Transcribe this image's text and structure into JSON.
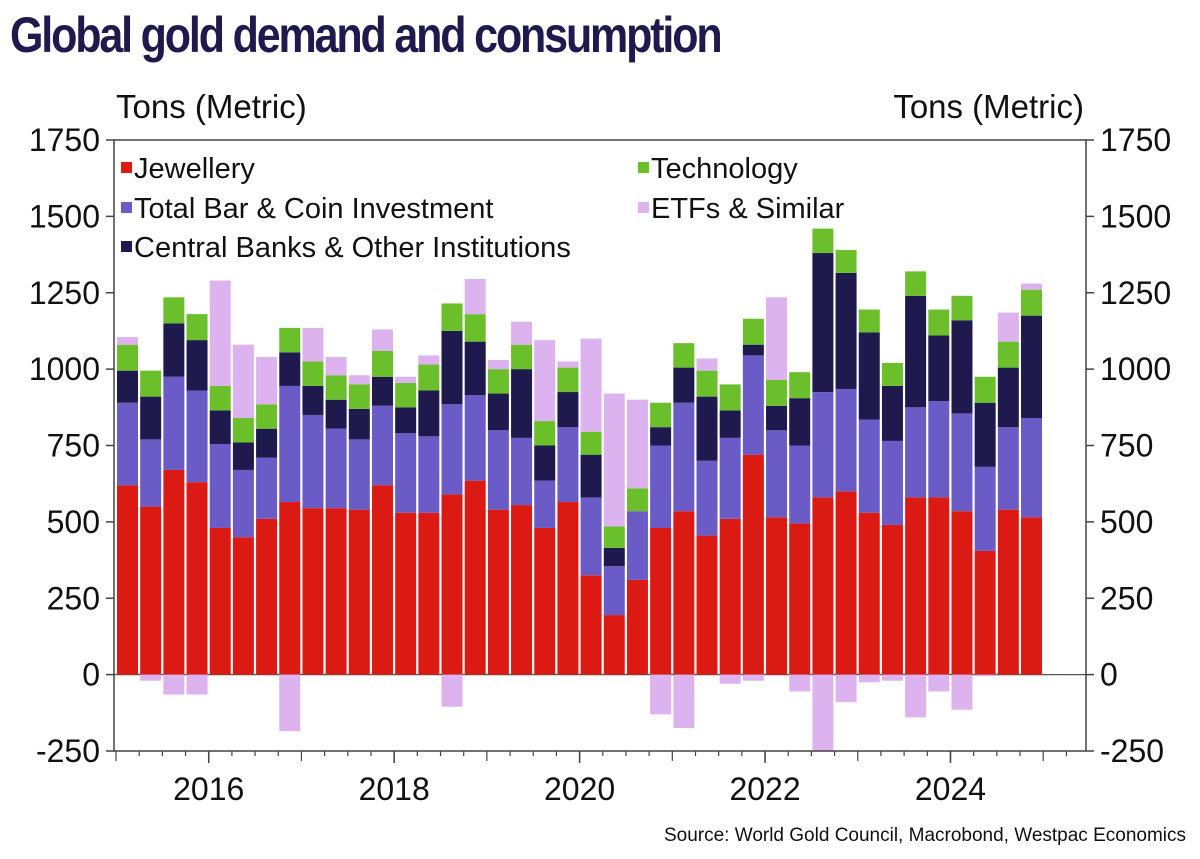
{
  "title": "Global gold demand and consumption",
  "units": {
    "left": "Tons (Metric)",
    "right": "Tons (Metric)"
  },
  "source": "Source: World Gold Council, Macrobond, Westpac Economics",
  "colors": {
    "Jewellery": "#dc1a14",
    "Technology": "#6bbf2a",
    "Total Bar & Coin Investment": "#6a5bc6",
    "ETFs & Similar": "#dcb3ef",
    "Central Banks & Other Institutions": "#1e1a4d"
  },
  "chart_data": {
    "type": "bar",
    "stacked": true,
    "x_axis": {
      "tick_labels": [
        "2016",
        "2018",
        "2020",
        "2022",
        "2024"
      ]
    },
    "y_axis": {
      "ylim": [
        -250,
        1750
      ],
      "ticks": [
        -250,
        0,
        250,
        500,
        750,
        1000,
        1250,
        1500,
        1750
      ],
      "left_label": "Tons (Metric)",
      "right_label": "Tons (Metric)"
    },
    "legend": [
      {
        "name": "Jewellery",
        "position": "top-left"
      },
      {
        "name": "Technology",
        "position": "top-right"
      },
      {
        "name": "Total Bar & Coin Investment",
        "position": "top-left"
      },
      {
        "name": "ETFs & Similar",
        "position": "top-right"
      },
      {
        "name": "Central Banks & Other Institutions",
        "position": "top-left"
      }
    ],
    "categories": [
      "2015 Q1",
      "2015 Q2",
      "2015 Q3",
      "2015 Q4",
      "2016 Q1",
      "2016 Q2",
      "2016 Q3",
      "2016 Q4",
      "2017 Q1",
      "2017 Q2",
      "2017 Q3",
      "2017 Q4",
      "2018 Q1",
      "2018 Q2",
      "2018 Q3",
      "2018 Q4",
      "2019 Q1",
      "2019 Q2",
      "2019 Q3",
      "2019 Q4",
      "2020 Q1",
      "2020 Q2",
      "2020 Q3",
      "2020 Q4",
      "2021 Q1",
      "2021 Q2",
      "2021 Q3",
      "2021 Q4",
      "2022 Q1",
      "2022 Q2",
      "2022 Q3",
      "2022 Q4",
      "2023 Q1",
      "2023 Q2",
      "2023 Q3",
      "2023 Q4",
      "2024 Q1",
      "2024 Q2",
      "2024 Q3",
      "2024 Q4",
      "2025 Q1"
    ],
    "series": [
      {
        "name": "Jewellery",
        "values": [
          620,
          550,
          670,
          630,
          480,
          450,
          510,
          565,
          545,
          545,
          540,
          620,
          530,
          530,
          590,
          635,
          540,
          555,
          480,
          565,
          325,
          195,
          310,
          480,
          535,
          455,
          510,
          720,
          515,
          495,
          580,
          600,
          530,
          490,
          580,
          580,
          535,
          405,
          540,
          515,
          0
        ]
      },
      {
        "name": "Total Bar & Coin Investment",
        "values": [
          270,
          220,
          305,
          300,
          275,
          220,
          200,
          380,
          305,
          260,
          230,
          260,
          260,
          250,
          295,
          280,
          260,
          220,
          155,
          245,
          255,
          160,
          225,
          270,
          355,
          245,
          265,
          325,
          285,
          255,
          345,
          335,
          305,
          275,
          295,
          315,
          320,
          275,
          270,
          325,
          0
        ]
      },
      {
        "name": "Central Banks & Other Institutions",
        "values": [
          105,
          140,
          175,
          165,
          110,
          90,
          95,
          110,
          95,
          95,
          100,
          95,
          85,
          150,
          240,
          175,
          120,
          225,
          115,
          115,
          140,
          60,
          0,
          60,
          115,
          210,
          90,
          35,
          80,
          155,
          455,
          380,
          285,
          180,
          365,
          215,
          305,
          210,
          195,
          335,
          0
        ]
      },
      {
        "name": "Technology",
        "values": [
          85,
          85,
          85,
          85,
          80,
          80,
          80,
          80,
          80,
          80,
          80,
          85,
          80,
          85,
          90,
          90,
          80,
          80,
          80,
          80,
          75,
          70,
          75,
          80,
          80,
          85,
          85,
          85,
          85,
          85,
          80,
          75,
          75,
          75,
          80,
          85,
          80,
          85,
          85,
          85,
          0
        ]
      },
      {
        "name": "ETFs & Similar",
        "values": [
          25,
          -20,
          -65,
          -65,
          345,
          240,
          155,
          -185,
          110,
          60,
          30,
          70,
          20,
          30,
          -105,
          115,
          30,
          75,
          265,
          20,
          305,
          435,
          290,
          -130,
          -175,
          40,
          -30,
          -20,
          270,
          -55,
          -250,
          -90,
          -25,
          -20,
          -140,
          -55,
          -115,
          -5,
          95,
          20,
          0
        ]
      }
    ]
  }
}
